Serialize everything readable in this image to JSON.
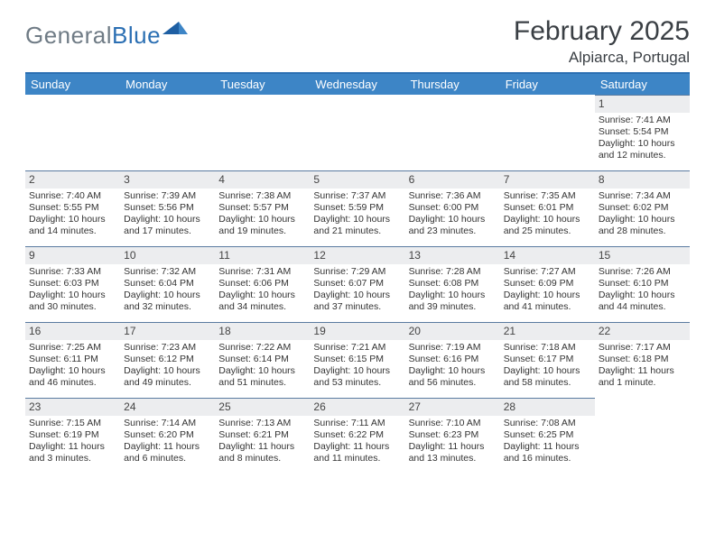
{
  "logo": {
    "grey": "General",
    "blue": "Blue"
  },
  "title": "February 2025",
  "location": "Alpiarca, Portugal",
  "weekday_header_bg": "#3d85c6",
  "weekday_header_fg": "#ffffff",
  "accent_rule": "#2b6fb3",
  "daynum_bg": "#ecedef",
  "daynum_border": "#5a7ba0",
  "weekdays": [
    "Sunday",
    "Monday",
    "Tuesday",
    "Wednesday",
    "Thursday",
    "Friday",
    "Saturday"
  ],
  "weeks": [
    [
      null,
      null,
      null,
      null,
      null,
      null,
      {
        "n": "1",
        "sr": "Sunrise: 7:41 AM",
        "ss": "Sunset: 5:54 PM",
        "dl": "Daylight: 10 hours and 12 minutes."
      }
    ],
    [
      {
        "n": "2",
        "sr": "Sunrise: 7:40 AM",
        "ss": "Sunset: 5:55 PM",
        "dl": "Daylight: 10 hours and 14 minutes."
      },
      {
        "n": "3",
        "sr": "Sunrise: 7:39 AM",
        "ss": "Sunset: 5:56 PM",
        "dl": "Daylight: 10 hours and 17 minutes."
      },
      {
        "n": "4",
        "sr": "Sunrise: 7:38 AM",
        "ss": "Sunset: 5:57 PM",
        "dl": "Daylight: 10 hours and 19 minutes."
      },
      {
        "n": "5",
        "sr": "Sunrise: 7:37 AM",
        "ss": "Sunset: 5:59 PM",
        "dl": "Daylight: 10 hours and 21 minutes."
      },
      {
        "n": "6",
        "sr": "Sunrise: 7:36 AM",
        "ss": "Sunset: 6:00 PM",
        "dl": "Daylight: 10 hours and 23 minutes."
      },
      {
        "n": "7",
        "sr": "Sunrise: 7:35 AM",
        "ss": "Sunset: 6:01 PM",
        "dl": "Daylight: 10 hours and 25 minutes."
      },
      {
        "n": "8",
        "sr": "Sunrise: 7:34 AM",
        "ss": "Sunset: 6:02 PM",
        "dl": "Daylight: 10 hours and 28 minutes."
      }
    ],
    [
      {
        "n": "9",
        "sr": "Sunrise: 7:33 AM",
        "ss": "Sunset: 6:03 PM",
        "dl": "Daylight: 10 hours and 30 minutes."
      },
      {
        "n": "10",
        "sr": "Sunrise: 7:32 AM",
        "ss": "Sunset: 6:04 PM",
        "dl": "Daylight: 10 hours and 32 minutes."
      },
      {
        "n": "11",
        "sr": "Sunrise: 7:31 AM",
        "ss": "Sunset: 6:06 PM",
        "dl": "Daylight: 10 hours and 34 minutes."
      },
      {
        "n": "12",
        "sr": "Sunrise: 7:29 AM",
        "ss": "Sunset: 6:07 PM",
        "dl": "Daylight: 10 hours and 37 minutes."
      },
      {
        "n": "13",
        "sr": "Sunrise: 7:28 AM",
        "ss": "Sunset: 6:08 PM",
        "dl": "Daylight: 10 hours and 39 minutes."
      },
      {
        "n": "14",
        "sr": "Sunrise: 7:27 AM",
        "ss": "Sunset: 6:09 PM",
        "dl": "Daylight: 10 hours and 41 minutes."
      },
      {
        "n": "15",
        "sr": "Sunrise: 7:26 AM",
        "ss": "Sunset: 6:10 PM",
        "dl": "Daylight: 10 hours and 44 minutes."
      }
    ],
    [
      {
        "n": "16",
        "sr": "Sunrise: 7:25 AM",
        "ss": "Sunset: 6:11 PM",
        "dl": "Daylight: 10 hours and 46 minutes."
      },
      {
        "n": "17",
        "sr": "Sunrise: 7:23 AM",
        "ss": "Sunset: 6:12 PM",
        "dl": "Daylight: 10 hours and 49 minutes."
      },
      {
        "n": "18",
        "sr": "Sunrise: 7:22 AM",
        "ss": "Sunset: 6:14 PM",
        "dl": "Daylight: 10 hours and 51 minutes."
      },
      {
        "n": "19",
        "sr": "Sunrise: 7:21 AM",
        "ss": "Sunset: 6:15 PM",
        "dl": "Daylight: 10 hours and 53 minutes."
      },
      {
        "n": "20",
        "sr": "Sunrise: 7:19 AM",
        "ss": "Sunset: 6:16 PM",
        "dl": "Daylight: 10 hours and 56 minutes."
      },
      {
        "n": "21",
        "sr": "Sunrise: 7:18 AM",
        "ss": "Sunset: 6:17 PM",
        "dl": "Daylight: 10 hours and 58 minutes."
      },
      {
        "n": "22",
        "sr": "Sunrise: 7:17 AM",
        "ss": "Sunset: 6:18 PM",
        "dl": "Daylight: 11 hours and 1 minute."
      }
    ],
    [
      {
        "n": "23",
        "sr": "Sunrise: 7:15 AM",
        "ss": "Sunset: 6:19 PM",
        "dl": "Daylight: 11 hours and 3 minutes."
      },
      {
        "n": "24",
        "sr": "Sunrise: 7:14 AM",
        "ss": "Sunset: 6:20 PM",
        "dl": "Daylight: 11 hours and 6 minutes."
      },
      {
        "n": "25",
        "sr": "Sunrise: 7:13 AM",
        "ss": "Sunset: 6:21 PM",
        "dl": "Daylight: 11 hours and 8 minutes."
      },
      {
        "n": "26",
        "sr": "Sunrise: 7:11 AM",
        "ss": "Sunset: 6:22 PM",
        "dl": "Daylight: 11 hours and 11 minutes."
      },
      {
        "n": "27",
        "sr": "Sunrise: 7:10 AM",
        "ss": "Sunset: 6:23 PM",
        "dl": "Daylight: 11 hours and 13 minutes."
      },
      {
        "n": "28",
        "sr": "Sunrise: 7:08 AM",
        "ss": "Sunset: 6:25 PM",
        "dl": "Daylight: 11 hours and 16 minutes."
      },
      null
    ]
  ]
}
